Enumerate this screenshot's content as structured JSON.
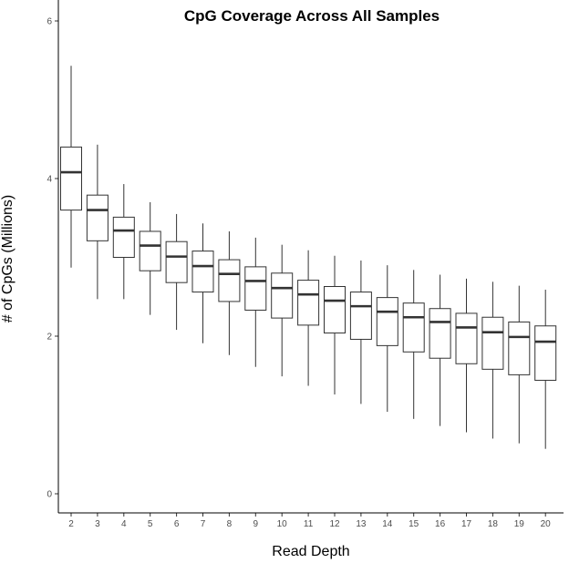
{
  "chart_data": {
    "type": "boxplot",
    "title": "CpG Coverage Across All Samples",
    "xlabel": "Read Depth",
    "ylabel": "# of CpGs (Millions)",
    "ylim": [
      0,
      6
    ],
    "yticks": [
      "0",
      "2",
      "4",
      "6"
    ],
    "grid": false,
    "categories": [
      "2",
      "3",
      "4",
      "5",
      "6",
      "7",
      "8",
      "9",
      "10",
      "11",
      "12",
      "13",
      "14",
      "15",
      "16",
      "17",
      "18",
      "19",
      "20"
    ],
    "boxes": [
      {
        "x": "2",
        "min": 2.87,
        "q1": 3.6,
        "median": 4.08,
        "q3": 4.4,
        "max": 5.43
      },
      {
        "x": "3",
        "min": 2.47,
        "q1": 3.21,
        "median": 3.6,
        "q3": 3.79,
        "max": 4.43
      },
      {
        "x": "4",
        "min": 2.47,
        "q1": 3.0,
        "median": 3.34,
        "q3": 3.51,
        "max": 3.93
      },
      {
        "x": "5",
        "min": 2.27,
        "q1": 2.83,
        "median": 3.15,
        "q3": 3.33,
        "max": 3.7
      },
      {
        "x": "6",
        "min": 2.08,
        "q1": 2.68,
        "median": 3.01,
        "q3": 3.2,
        "max": 3.55
      },
      {
        "x": "7",
        "min": 1.91,
        "q1": 2.56,
        "median": 2.89,
        "q3": 3.08,
        "max": 3.43
      },
      {
        "x": "8",
        "min": 1.76,
        "q1": 2.44,
        "median": 2.79,
        "q3": 2.97,
        "max": 3.33
      },
      {
        "x": "9",
        "min": 1.61,
        "q1": 2.33,
        "median": 2.7,
        "q3": 2.88,
        "max": 3.25
      },
      {
        "x": "10",
        "min": 1.49,
        "q1": 2.23,
        "median": 2.61,
        "q3": 2.8,
        "max": 3.16
      },
      {
        "x": "11",
        "min": 1.37,
        "q1": 2.14,
        "median": 2.53,
        "q3": 2.71,
        "max": 3.09
      },
      {
        "x": "12",
        "min": 1.26,
        "q1": 2.04,
        "median": 2.45,
        "q3": 2.63,
        "max": 3.02
      },
      {
        "x": "13",
        "min": 1.14,
        "q1": 1.96,
        "median": 2.38,
        "q3": 2.56,
        "max": 2.96
      },
      {
        "x": "14",
        "min": 1.04,
        "q1": 1.88,
        "median": 2.31,
        "q3": 2.49,
        "max": 2.9
      },
      {
        "x": "15",
        "min": 0.95,
        "q1": 1.8,
        "median": 2.24,
        "q3": 2.42,
        "max": 2.84
      },
      {
        "x": "16",
        "min": 0.86,
        "q1": 1.72,
        "median": 2.18,
        "q3": 2.35,
        "max": 2.78
      },
      {
        "x": "17",
        "min": 0.78,
        "q1": 1.65,
        "median": 2.11,
        "q3": 2.29,
        "max": 2.73
      },
      {
        "x": "18",
        "min": 0.7,
        "q1": 1.58,
        "median": 2.05,
        "q3": 2.24,
        "max": 2.69
      },
      {
        "x": "19",
        "min": 0.64,
        "q1": 1.51,
        "median": 1.99,
        "q3": 2.18,
        "max": 2.64
      },
      {
        "x": "20",
        "min": 0.57,
        "q1": 1.44,
        "median": 1.93,
        "q3": 2.13,
        "max": 2.59
      }
    ]
  },
  "colors": {
    "box_fill": "#ffffff",
    "box_stroke": "#333333",
    "axis": "#000000",
    "tick_text": "#4d4d4d"
  }
}
